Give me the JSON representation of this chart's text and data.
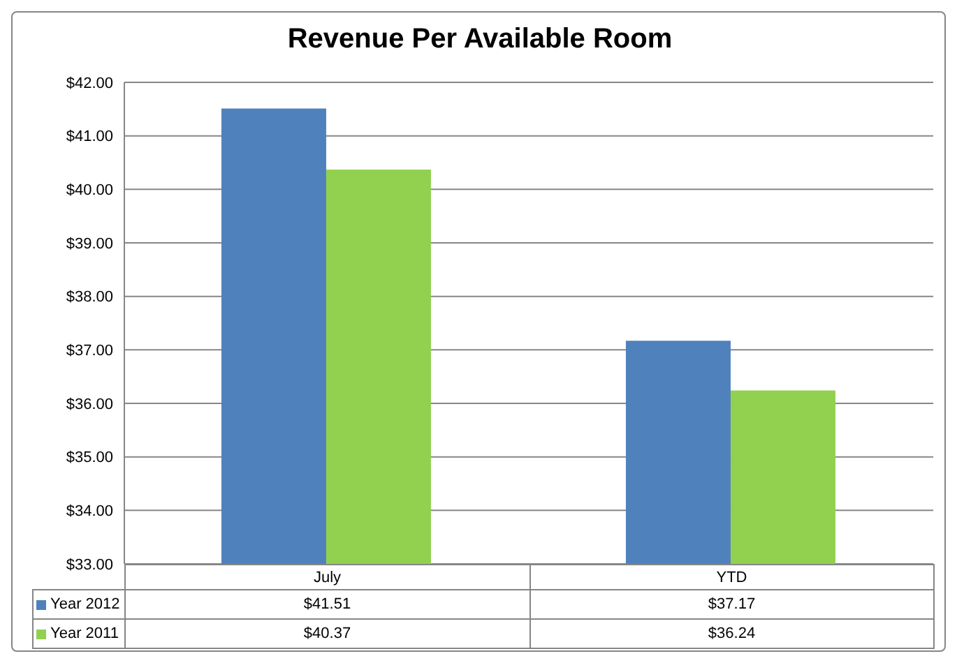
{
  "chart_data": {
    "type": "bar",
    "title": "Revenue Per Available Room",
    "categories": [
      "July",
      "YTD"
    ],
    "series": [
      {
        "name": "Year 2012",
        "color": "#4f81bd",
        "values": [
          41.51,
          37.17
        ],
        "value_labels": [
          "$41.51",
          "$37.17"
        ]
      },
      {
        "name": "Year 2011",
        "color": "#92d050",
        "values": [
          40.37,
          36.24
        ],
        "value_labels": [
          "$40.37",
          "$36.24"
        ]
      }
    ],
    "ylim": [
      33,
      42
    ],
    "yticks": [
      {
        "value": 33,
        "label": "$33.00"
      },
      {
        "value": 34,
        "label": "$34.00"
      },
      {
        "value": 35,
        "label": "$35.00"
      },
      {
        "value": 36,
        "label": "$36.00"
      },
      {
        "value": 37,
        "label": "$37.00"
      },
      {
        "value": 38,
        "label": "$38.00"
      },
      {
        "value": 39,
        "label": "$39.00"
      },
      {
        "value": 40,
        "label": "$40.00"
      },
      {
        "value": 41,
        "label": "$41.00"
      },
      {
        "value": 42,
        "label": "$42.00"
      }
    ],
    "grid": "y",
    "legend": "bottom"
  }
}
